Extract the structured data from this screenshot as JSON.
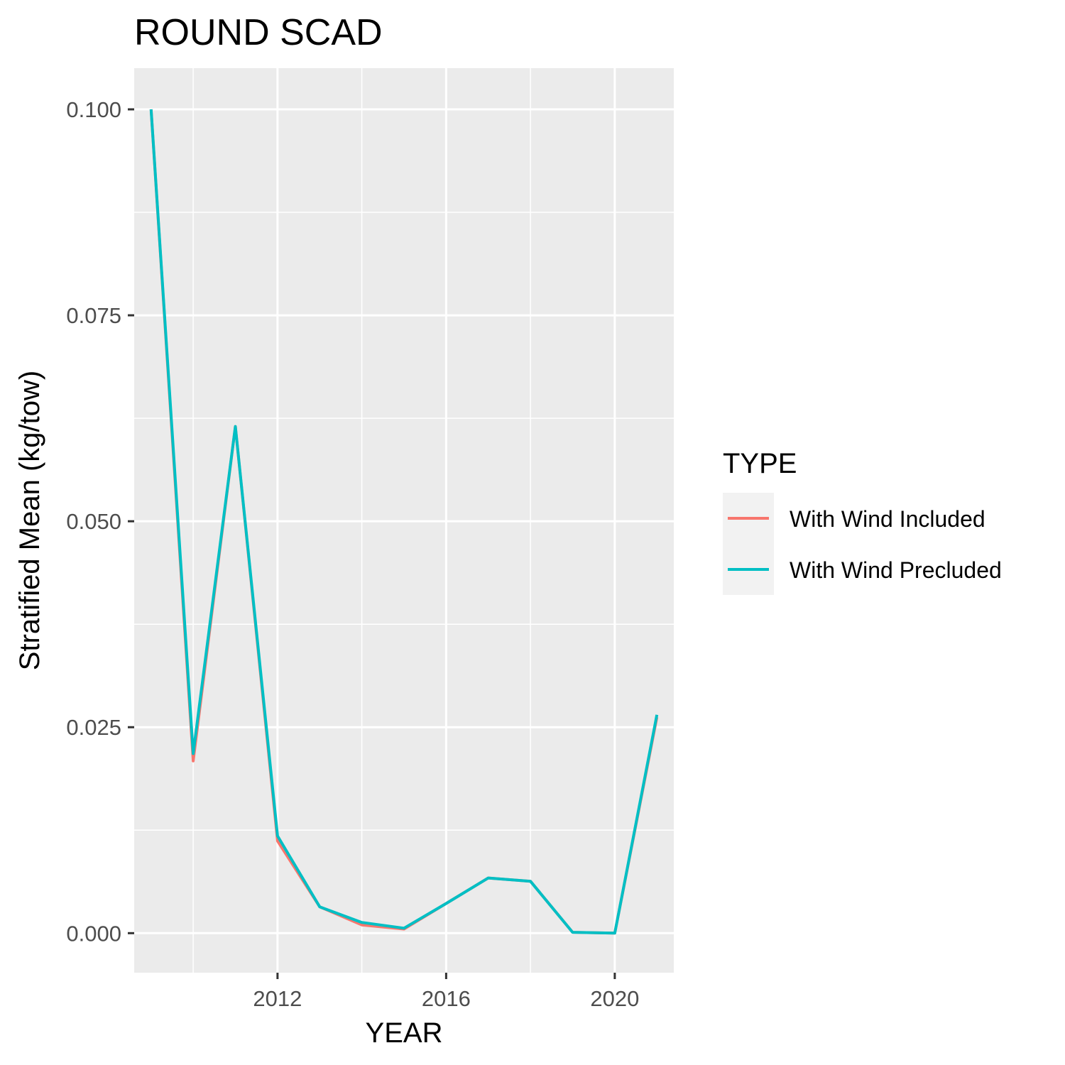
{
  "chart_data": {
    "type": "line",
    "title": "ROUND SCAD",
    "xlabel": "YEAR",
    "ylabel": "Stratified Mean (kg/tow)",
    "xlim": [
      2008.6,
      2021.4
    ],
    "ylim": [
      -0.0048,
      0.105
    ],
    "x_ticks_major": [
      2012,
      2016,
      2020
    ],
    "x_ticks_minor": [
      2010,
      2014,
      2018
    ],
    "y_ticks_major": [
      0.0,
      0.025,
      0.05,
      0.075,
      0.1
    ],
    "y_tick_labels": [
      "0.000",
      "0.025",
      "0.050",
      "0.075",
      "0.100"
    ],
    "y_ticks_minor": [
      0.0125,
      0.0375,
      0.0625,
      0.0875
    ],
    "grid": true,
    "legend": {
      "title": "TYPE",
      "placement": "right"
    },
    "x": [
      2009,
      2010,
      2011,
      2012,
      2013,
      2014,
      2015,
      2016,
      2017,
      2018,
      2019,
      2020,
      2021
    ],
    "series": [
      {
        "name": "With Wind Included",
        "color": "#F8766D",
        "values": [
          0.1,
          0.0209,
          0.0615,
          0.0112,
          0.0032,
          0.001,
          0.0005,
          0.0036,
          0.0067,
          0.0063,
          0.0001,
          0.0,
          0.0262
        ]
      },
      {
        "name": "With Wind Precluded",
        "color": "#00BFC4",
        "values": [
          0.1,
          0.0218,
          0.0615,
          0.0118,
          0.0032,
          0.0013,
          0.0006,
          0.0036,
          0.0067,
          0.0063,
          0.0001,
          0.0,
          0.0265
        ]
      }
    ]
  }
}
